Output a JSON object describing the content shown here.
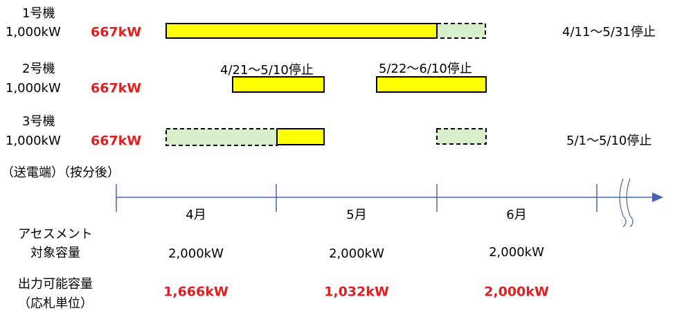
{
  "units": [
    {
      "name": "1号機",
      "capacity": "1,000kW",
      "allocated": "667kW",
      "notes": [
        "4/11～5/31停止"
      ]
    },
    {
      "name": "2号機",
      "capacity": "1,000kW",
      "allocated": "667kW",
      "notes": [
        "4/21～5/10停止",
        "5/22～6/10停止"
      ]
    },
    {
      "name": "3号機",
      "capacity": "1,000kW",
      "allocated": "667kW",
      "notes": [
        "5/1～5/10停止"
      ]
    }
  ],
  "footnote": "（送電端）（按分後）",
  "months": [
    "4月",
    "5月",
    "6月"
  ],
  "assessment": {
    "label": [
      "アセスメント",
      "対象容量"
    ],
    "values": [
      "2,000kW",
      "2,000kW",
      "2,000kW"
    ]
  },
  "output": {
    "label": [
      "出力可能容量",
      "（応札単位）"
    ],
    "values": [
      "1,666kW",
      "1,032kW",
      "2,000kW"
    ]
  }
}
